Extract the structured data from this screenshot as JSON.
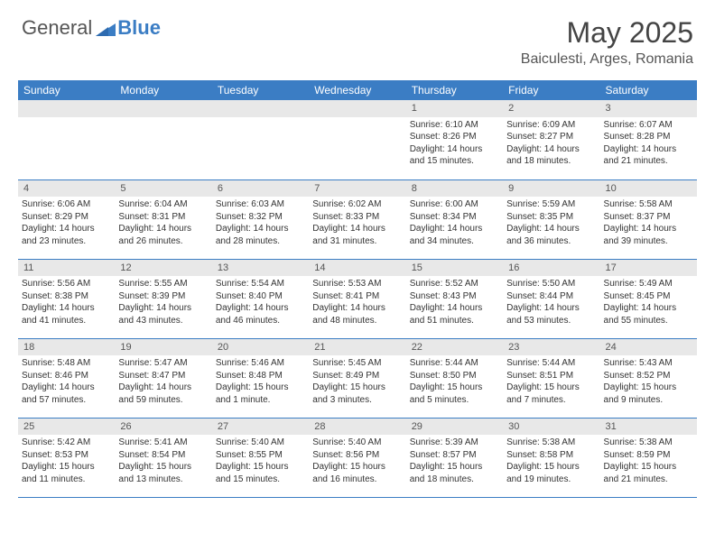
{
  "brand": {
    "general": "General",
    "blue": "Blue"
  },
  "title": "May 2025",
  "location": "Baiculesti, Arges, Romania",
  "colors": {
    "header_bg": "#3b7dc4",
    "header_text": "#ffffff",
    "daynum_bg": "#e8e8e8",
    "cell_border": "#3b7dc4",
    "body_text": "#333333",
    "logo_gray": "#555555",
    "logo_blue": "#3b7dc4"
  },
  "day_names": [
    "Sunday",
    "Monday",
    "Tuesday",
    "Wednesday",
    "Thursday",
    "Friday",
    "Saturday"
  ],
  "weeks": [
    [
      {
        "n": "",
        "sr": "",
        "ss": "",
        "dl": ""
      },
      {
        "n": "",
        "sr": "",
        "ss": "",
        "dl": ""
      },
      {
        "n": "",
        "sr": "",
        "ss": "",
        "dl": ""
      },
      {
        "n": "",
        "sr": "",
        "ss": "",
        "dl": ""
      },
      {
        "n": "1",
        "sr": "Sunrise: 6:10 AM",
        "ss": "Sunset: 8:26 PM",
        "dl": "Daylight: 14 hours and 15 minutes."
      },
      {
        "n": "2",
        "sr": "Sunrise: 6:09 AM",
        "ss": "Sunset: 8:27 PM",
        "dl": "Daylight: 14 hours and 18 minutes."
      },
      {
        "n": "3",
        "sr": "Sunrise: 6:07 AM",
        "ss": "Sunset: 8:28 PM",
        "dl": "Daylight: 14 hours and 21 minutes."
      }
    ],
    [
      {
        "n": "4",
        "sr": "Sunrise: 6:06 AM",
        "ss": "Sunset: 8:29 PM",
        "dl": "Daylight: 14 hours and 23 minutes."
      },
      {
        "n": "5",
        "sr": "Sunrise: 6:04 AM",
        "ss": "Sunset: 8:31 PM",
        "dl": "Daylight: 14 hours and 26 minutes."
      },
      {
        "n": "6",
        "sr": "Sunrise: 6:03 AM",
        "ss": "Sunset: 8:32 PM",
        "dl": "Daylight: 14 hours and 28 minutes."
      },
      {
        "n": "7",
        "sr": "Sunrise: 6:02 AM",
        "ss": "Sunset: 8:33 PM",
        "dl": "Daylight: 14 hours and 31 minutes."
      },
      {
        "n": "8",
        "sr": "Sunrise: 6:00 AM",
        "ss": "Sunset: 8:34 PM",
        "dl": "Daylight: 14 hours and 34 minutes."
      },
      {
        "n": "9",
        "sr": "Sunrise: 5:59 AM",
        "ss": "Sunset: 8:35 PM",
        "dl": "Daylight: 14 hours and 36 minutes."
      },
      {
        "n": "10",
        "sr": "Sunrise: 5:58 AM",
        "ss": "Sunset: 8:37 PM",
        "dl": "Daylight: 14 hours and 39 minutes."
      }
    ],
    [
      {
        "n": "11",
        "sr": "Sunrise: 5:56 AM",
        "ss": "Sunset: 8:38 PM",
        "dl": "Daylight: 14 hours and 41 minutes."
      },
      {
        "n": "12",
        "sr": "Sunrise: 5:55 AM",
        "ss": "Sunset: 8:39 PM",
        "dl": "Daylight: 14 hours and 43 minutes."
      },
      {
        "n": "13",
        "sr": "Sunrise: 5:54 AM",
        "ss": "Sunset: 8:40 PM",
        "dl": "Daylight: 14 hours and 46 minutes."
      },
      {
        "n": "14",
        "sr": "Sunrise: 5:53 AM",
        "ss": "Sunset: 8:41 PM",
        "dl": "Daylight: 14 hours and 48 minutes."
      },
      {
        "n": "15",
        "sr": "Sunrise: 5:52 AM",
        "ss": "Sunset: 8:43 PM",
        "dl": "Daylight: 14 hours and 51 minutes."
      },
      {
        "n": "16",
        "sr": "Sunrise: 5:50 AM",
        "ss": "Sunset: 8:44 PM",
        "dl": "Daylight: 14 hours and 53 minutes."
      },
      {
        "n": "17",
        "sr": "Sunrise: 5:49 AM",
        "ss": "Sunset: 8:45 PM",
        "dl": "Daylight: 14 hours and 55 minutes."
      }
    ],
    [
      {
        "n": "18",
        "sr": "Sunrise: 5:48 AM",
        "ss": "Sunset: 8:46 PM",
        "dl": "Daylight: 14 hours and 57 minutes."
      },
      {
        "n": "19",
        "sr": "Sunrise: 5:47 AM",
        "ss": "Sunset: 8:47 PM",
        "dl": "Daylight: 14 hours and 59 minutes."
      },
      {
        "n": "20",
        "sr": "Sunrise: 5:46 AM",
        "ss": "Sunset: 8:48 PM",
        "dl": "Daylight: 15 hours and 1 minute."
      },
      {
        "n": "21",
        "sr": "Sunrise: 5:45 AM",
        "ss": "Sunset: 8:49 PM",
        "dl": "Daylight: 15 hours and 3 minutes."
      },
      {
        "n": "22",
        "sr": "Sunrise: 5:44 AM",
        "ss": "Sunset: 8:50 PM",
        "dl": "Daylight: 15 hours and 5 minutes."
      },
      {
        "n": "23",
        "sr": "Sunrise: 5:44 AM",
        "ss": "Sunset: 8:51 PM",
        "dl": "Daylight: 15 hours and 7 minutes."
      },
      {
        "n": "24",
        "sr": "Sunrise: 5:43 AM",
        "ss": "Sunset: 8:52 PM",
        "dl": "Daylight: 15 hours and 9 minutes."
      }
    ],
    [
      {
        "n": "25",
        "sr": "Sunrise: 5:42 AM",
        "ss": "Sunset: 8:53 PM",
        "dl": "Daylight: 15 hours and 11 minutes."
      },
      {
        "n": "26",
        "sr": "Sunrise: 5:41 AM",
        "ss": "Sunset: 8:54 PM",
        "dl": "Daylight: 15 hours and 13 minutes."
      },
      {
        "n": "27",
        "sr": "Sunrise: 5:40 AM",
        "ss": "Sunset: 8:55 PM",
        "dl": "Daylight: 15 hours and 15 minutes."
      },
      {
        "n": "28",
        "sr": "Sunrise: 5:40 AM",
        "ss": "Sunset: 8:56 PM",
        "dl": "Daylight: 15 hours and 16 minutes."
      },
      {
        "n": "29",
        "sr": "Sunrise: 5:39 AM",
        "ss": "Sunset: 8:57 PM",
        "dl": "Daylight: 15 hours and 18 minutes."
      },
      {
        "n": "30",
        "sr": "Sunrise: 5:38 AM",
        "ss": "Sunset: 8:58 PM",
        "dl": "Daylight: 15 hours and 19 minutes."
      },
      {
        "n": "31",
        "sr": "Sunrise: 5:38 AM",
        "ss": "Sunset: 8:59 PM",
        "dl": "Daylight: 15 hours and 21 minutes."
      }
    ]
  ]
}
